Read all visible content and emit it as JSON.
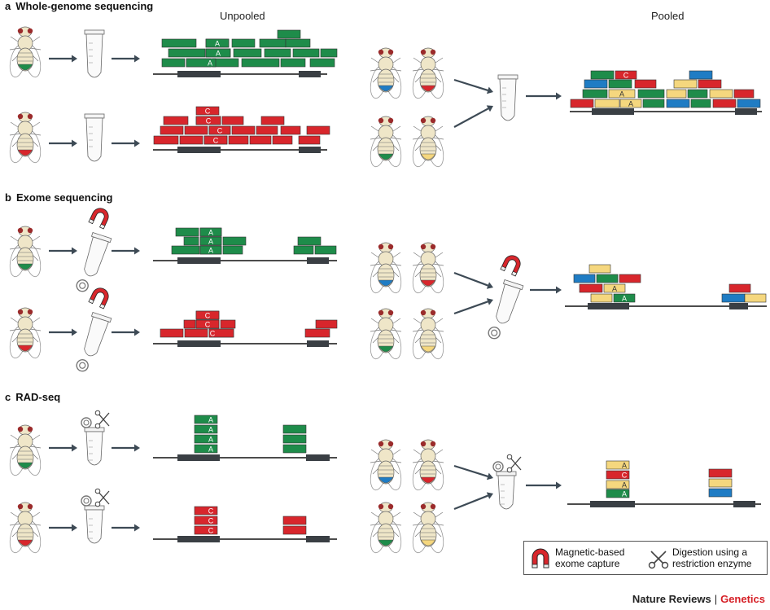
{
  "panels": {
    "a": {
      "letter": "a",
      "title": "Whole-genome sequencing"
    },
    "b": {
      "letter": "b",
      "title": "Exome sequencing"
    },
    "c": {
      "letter": "c",
      "title": "RAD-seq"
    }
  },
  "columns": {
    "unpooled": "Unpooled",
    "pooled": "Pooled"
  },
  "read_letters": {
    "A": "A",
    "C": "C"
  },
  "legend": {
    "magnet_line1": "Magnetic-based",
    "magnet_line2": "exome capture",
    "scissors_line1": "Digestion using a",
    "scissors_line2": "restriction enzyme"
  },
  "footer": {
    "journal": "Nature Reviews",
    "separator": "|",
    "section": "Genetics"
  },
  "colors": {
    "green": "#1e8c4a",
    "red": "#d8262c",
    "blue": "#1f7cc4",
    "yellow": "#f5d77e",
    "chrom": "#3a3f44",
    "arrow": "#3d4a55"
  }
}
